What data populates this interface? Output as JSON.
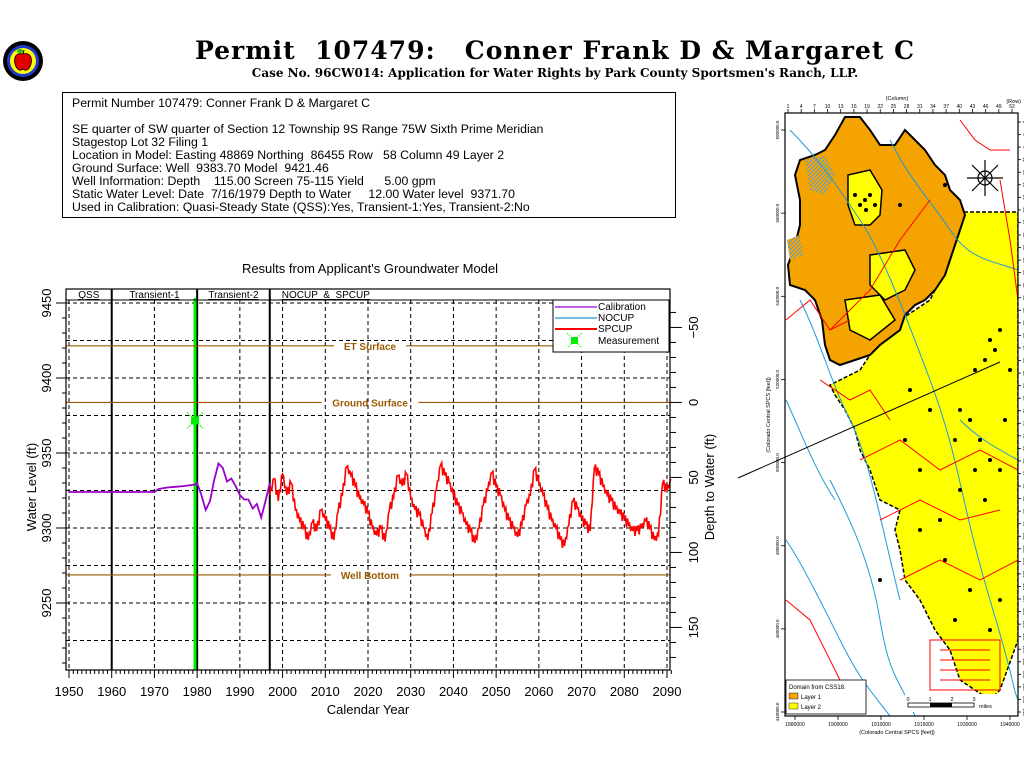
{
  "header": {
    "title": "Permit  107479:   Conner Frank D & Margaret C",
    "subtitle": "Case No. 96CW014: Application for Water Rights by Park County Sportsmen's Ranch, LLP.",
    "logo_icon": "apple-seal-icon"
  },
  "info_box": {
    "heading": "Permit Number 107479: Conner Frank D & Margaret C",
    "lines": [
      "SE quarter of SW quarter of Section 12 Township 9S Range 75W Sixth Prime Meridian",
      "Stagestop Lot 32 Filing 1",
      "Location in Model: Easting 48869 Northing  86455 Row   58 Column 49 Layer 2",
      "Ground Surface: Well  9383.70 Model  9421.46",
      "Well Information: Depth    115.00 Screen 75-115 Yield      5.00 gpm",
      "Static Water Level: Date  7/16/1979 Depth to Water     12.00 Water level  9371.70",
      "Used in Calibration: Quasi-Steady State (QSS):Yes, Transient-1:Yes, Transient-2:No"
    ]
  },
  "chart_data": {
    "type": "line",
    "title": "Results from Applicant's Groundwater Model",
    "xlabel": "Calendar Year",
    "ylabel": "Water Level (ft)",
    "y2label": "Depth to Water (ft)",
    "xlim": [
      1950,
      2091
    ],
    "ylim": [
      9205,
      9455
    ],
    "y2_reference": 9383.7,
    "xticks": [
      1950,
      1960,
      1970,
      1980,
      1990,
      2000,
      2010,
      2020,
      2030,
      2040,
      2050,
      2060,
      2070,
      2080,
      2090
    ],
    "yticks": [
      9250,
      9300,
      9350,
      9400,
      9450
    ],
    "y2ticks": [
      -50,
      0,
      50,
      100,
      150
    ],
    "grid": true,
    "periods": [
      {
        "label": "QSS",
        "start": 1950,
        "end": 1960
      },
      {
        "label": "Transient-1",
        "start": 1960,
        "end": 1980
      },
      {
        "label": "Transient-2",
        "start": 1980,
        "end": 1997
      },
      {
        "label": "NOCUP  &  SPCUP",
        "start": 1997,
        "end": 2091
      }
    ],
    "reference_lines": [
      {
        "label": "ET Surface",
        "value": 9421.46,
        "color": "#9a5a00"
      },
      {
        "label": "Ground Surface",
        "value": 9383.7,
        "color": "#9a5a00"
      },
      {
        "label": "Well Bottom",
        "value": 9268.7,
        "color": "#9a5a00"
      }
    ],
    "legend": {
      "placement": "top-right",
      "entries": [
        {
          "label": "Calibration",
          "color": "#9900cc",
          "kind": "line"
        },
        {
          "label": "NOCUP",
          "color": "#1e9bd7",
          "kind": "line"
        },
        {
          "label": "SPCUP",
          "color": "#ff0000",
          "kind": "line"
        },
        {
          "label": "Measurement",
          "color": "#00ee00",
          "kind": "marker"
        }
      ]
    },
    "series": [
      {
        "name": "Calibration",
        "color": "#9900cc",
        "x": [
          1950,
          1960,
          1970,
          1971,
          1973,
          1975,
          1977,
          1979.5,
          1980,
          1981,
          1982,
          1983,
          1984,
          1985,
          1986,
          1987,
          1988,
          1989,
          1990,
          1991,
          1992,
          1993,
          1994,
          1995,
          1996,
          1997
        ],
        "y": [
          9324,
          9324,
          9324,
          9326,
          9327,
          9327.5,
          9328,
          9329,
          9330,
          9322,
          9312,
          9318,
          9332,
          9343,
          9340,
          9331,
          9333,
          9328,
          9322,
          9319,
          9319,
          9313,
          9316,
          9307,
          9318,
          9330
        ]
      },
      {
        "name": "SPCUP",
        "color": "#ff0000",
        "x": [
          1997,
          1998,
          1999,
          2000,
          2001,
          2002,
          2003,
          2004,
          2005,
          2006,
          2007,
          2008,
          2009,
          2010,
          2011,
          2012,
          2013,
          2014,
          2015,
          2016,
          2017,
          2018,
          2019,
          2020,
          2021,
          2022,
          2023,
          2024,
          2025,
          2026,
          2027,
          2028,
          2029,
          2030,
          2031,
          2032,
          2033,
          2034,
          2035,
          2036,
          2037,
          2038,
          2039,
          2040,
          2041,
          2042,
          2043,
          2044,
          2045,
          2046,
          2047,
          2048,
          2049,
          2050,
          2051,
          2052,
          2053,
          2054,
          2055,
          2056,
          2057,
          2058,
          2059,
          2060,
          2061,
          2062,
          2063,
          2064,
          2065,
          2066,
          2067,
          2068,
          2069,
          2070,
          2071,
          2072,
          2073,
          2074,
          2075,
          2076,
          2077,
          2078,
          2079,
          2080,
          2081,
          2082,
          2083,
          2084,
          2085,
          2086,
          2087,
          2088,
          2089,
          2090,
          2091
        ],
        "y": [
          9322,
          9333,
          9318,
          9336,
          9322,
          9330,
          9312,
          9305,
          9300,
          9292,
          9304,
          9298,
          9312,
          9306,
          9300,
          9292,
          9311,
          9322,
          9341,
          9335,
          9328,
          9320,
          9316,
          9310,
          9300,
          9295,
          9300,
          9291,
          9312,
          9320,
          9335,
          9328,
          9336,
          9320,
          9312,
          9309,
          9300,
          9292,
          9310,
          9325,
          9342,
          9335,
          9330,
          9322,
          9315,
          9310,
          9302,
          9298,
          9290,
          9300,
          9315,
          9325,
          9337,
          9327,
          9322,
          9312,
          9305,
          9300,
          9294,
          9302,
          9315,
          9322,
          9339,
          9330,
          9322,
          9313,
          9305,
          9300,
          9292,
          9288,
          9302,
          9318,
          9313,
          9306,
          9302,
          9298,
          9340,
          9336,
          9328,
          9322,
          9318,
          9313,
          9310,
          9306,
          9302,
          9298,
          9298,
          9300,
          9305,
          9300,
          9292,
          9295,
          9330,
          9325,
          9332
        ]
      }
    ],
    "measurement": {
      "label": "Measurement",
      "x": 1979.5,
      "y": 9371.7
    }
  },
  "map": {
    "top_axis_title": "(Column)",
    "top_ticks": [
      "1",
      "4",
      "7",
      "10",
      "13",
      "16",
      "19",
      "22",
      "25",
      "28",
      "31",
      "34",
      "37",
      "40",
      "43",
      "46",
      "49",
      "52"
    ],
    "right_axis_title": "(Row)",
    "right_ticks": [
      "3",
      "6",
      "9",
      "12",
      "15",
      "18",
      "21",
      "24",
      "27",
      "30",
      "33",
      "36",
      "39",
      "42",
      "45",
      "48",
      "51",
      "54",
      "57",
      "60",
      "63",
      "66",
      "69",
      "72",
      "75",
      "78",
      "81",
      "84",
      "87",
      "90",
      "93",
      "96",
      "99",
      "102",
      "105",
      "108",
      "111",
      "114",
      "117",
      "120",
      "123",
      "126",
      "129",
      "132",
      "135",
      "138",
      "141",
      "144"
    ],
    "left_axis_title": "(Colorado Central SPCS [feet])",
    "left_ticks": [
      "580000.0",
      "560000.0",
      "540000.0",
      "520000.0",
      "500000.0",
      "480000.0",
      "460000.0",
      "440000.0"
    ],
    "bottom_axis_title": "(Colorado Central SPCS [feet])",
    "bottom_ticks": [
      "1880000",
      "1900000",
      "1910000",
      "1915000",
      "1930000",
      "1940000"
    ],
    "legend_title": "Domain from CSS18.",
    "legend_items": [
      {
        "label": "Layer 1",
        "color": "#f4a300"
      },
      {
        "label": "Layer 2",
        "color": "#ffff00"
      }
    ],
    "scale_bar_labels": [
      "0",
      "1",
      "2",
      "3"
    ],
    "scale_bar_unit": "miles",
    "compass_icon": "north-arrow-compass-icon"
  }
}
